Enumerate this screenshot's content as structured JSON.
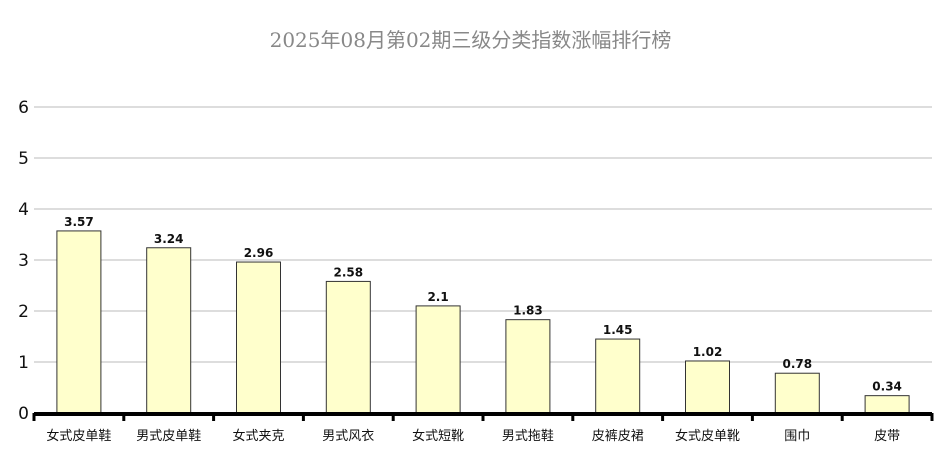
{
  "chart_data": {
    "type": "bar",
    "title": "2025年08月第02期三级分类指数涨幅排行榜",
    "categories": [
      "女式皮单鞋",
      "男式皮单鞋",
      "女式夹克",
      "男式风衣",
      "女式短靴",
      "男式拖鞋",
      "皮裤皮裙",
      "女式皮单靴",
      "围巾",
      "皮带"
    ],
    "values": [
      3.57,
      3.24,
      2.96,
      2.58,
      2.1,
      1.83,
      1.45,
      1.02,
      0.78,
      0.34
    ],
    "value_labels": [
      "3.57",
      "3.24",
      "2.96",
      "2.58",
      "2.1",
      "1.83",
      "1.45",
      "1.02",
      "0.78",
      "0.34"
    ],
    "yticks": [
      "0",
      "1",
      "2",
      "3",
      "4",
      "5",
      "6"
    ],
    "ylim": [
      0,
      6
    ],
    "xlabel": "",
    "ylabel": "",
    "grid": true,
    "colors": {
      "bar_fill": "#ffffcc",
      "bar_stroke": "#333333",
      "grid": "#bbbbbb",
      "axis": "#000000"
    }
  }
}
